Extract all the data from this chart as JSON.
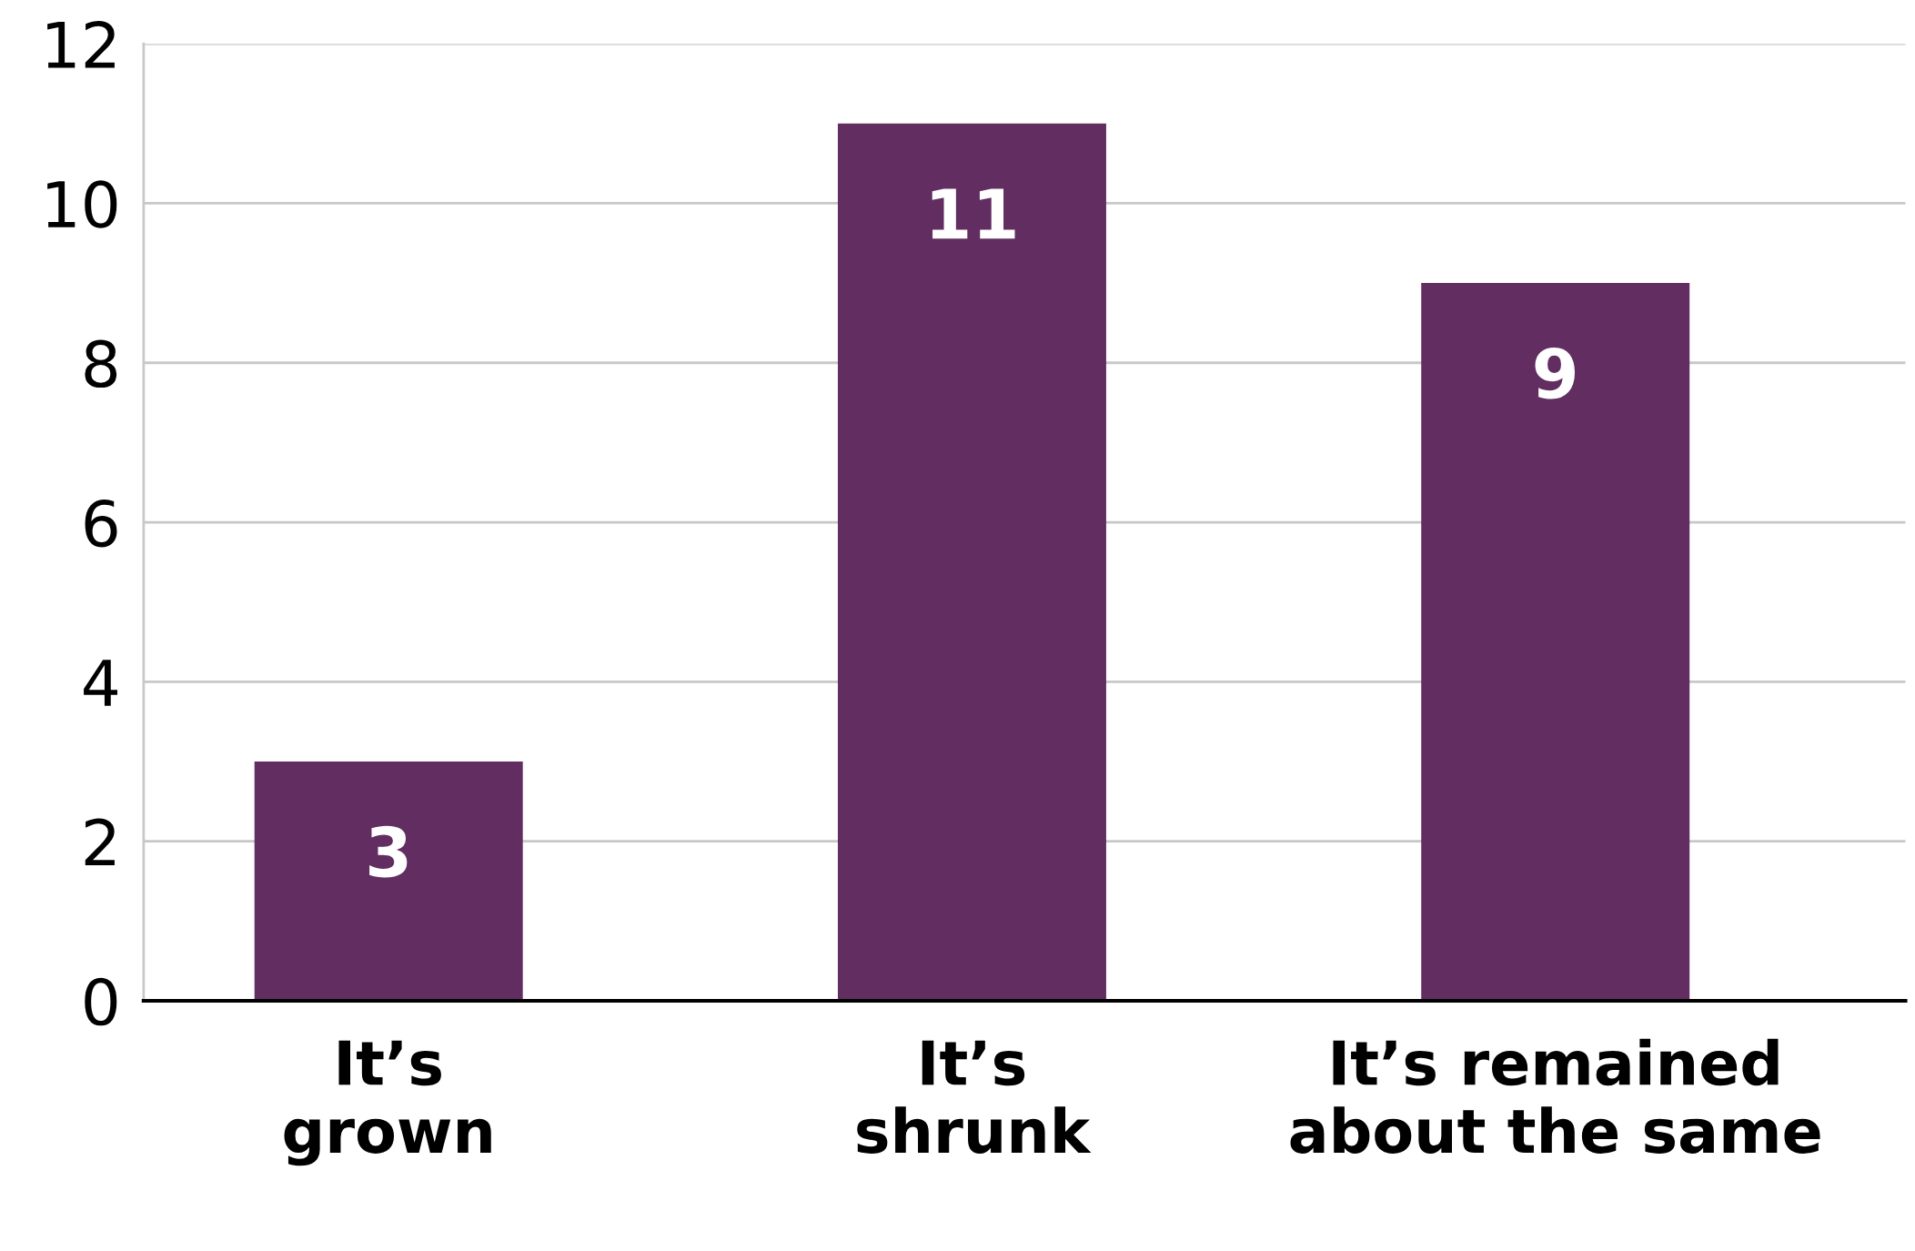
{
  "chart_data": {
    "type": "bar",
    "categories": [
      "It’s\ngrown",
      "It’s\nshrunk",
      "It’s remained\nabout the same"
    ],
    "values": [
      3,
      11,
      9
    ],
    "color": "#622e61",
    "ylim": [
      0,
      12
    ],
    "yticks": [
      0,
      2,
      4,
      6,
      8,
      10,
      12
    ],
    "grid": "y",
    "data_labels": true
  }
}
